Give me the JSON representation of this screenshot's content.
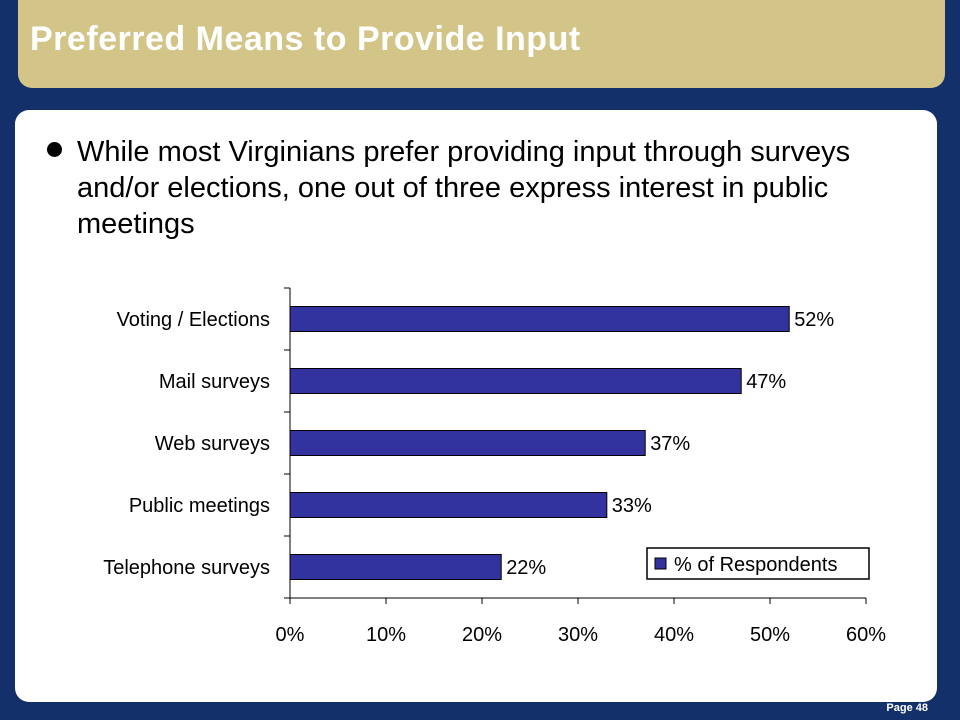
{
  "slide": {
    "title": "Preferred Means to Provide Input",
    "bullet": "While most Virginians prefer providing input through surveys and/or elections, one out of three express interest in public meetings",
    "page": "Page 48"
  },
  "colors": {
    "background": "#13306a",
    "title_bar": "#d3c588",
    "bar_fill": "#3333a0"
  },
  "chart_data": {
    "type": "bar",
    "orientation": "horizontal",
    "categories": [
      "Voting / Elections",
      "Mail surveys",
      "Web surveys",
      "Public meetings",
      "Telephone surveys"
    ],
    "series": [
      {
        "name": "% of Respondents",
        "values": [
          52,
          47,
          37,
          33,
          22
        ]
      }
    ],
    "value_labels": [
      "52%",
      "47%",
      "37%",
      "33%",
      "22%"
    ],
    "x_ticks": [
      "0%",
      "10%",
      "20%",
      "30%",
      "40%",
      "50%",
      "60%"
    ],
    "xlim": [
      0,
      60
    ],
    "grid": false,
    "legend_position": "bottom-right"
  }
}
